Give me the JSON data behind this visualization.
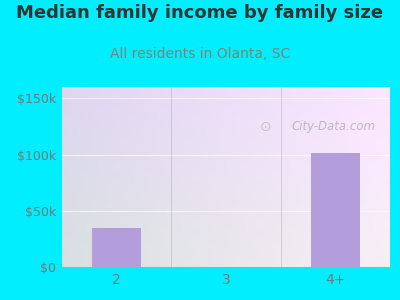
{
  "title": "Median family income by family size",
  "subtitle": "All residents in Olanta, SC",
  "categories": [
    "2",
    "3",
    "4+"
  ],
  "values": [
    35000,
    0,
    101000
  ],
  "bar_color": "#b39ddb",
  "outer_bg": "#00eeff",
  "plot_bg_topleft": "#d6efd6",
  "plot_bg_topright": "#e8f0f8",
  "plot_bg_bottomleft": "#c8e8c8",
  "plot_bg_bottomright": "#d8eaf5",
  "title_color": "#333333",
  "subtitle_color": "#778877",
  "axis_color": "#777777",
  "yticks": [
    0,
    50000,
    100000,
    150000
  ],
  "ytick_labels": [
    "$0",
    "$50k",
    "$100k",
    "$150k"
  ],
  "ylim": [
    0,
    160000
  ],
  "watermark": "City-Data.com",
  "title_fontsize": 13,
  "subtitle_fontsize": 10
}
